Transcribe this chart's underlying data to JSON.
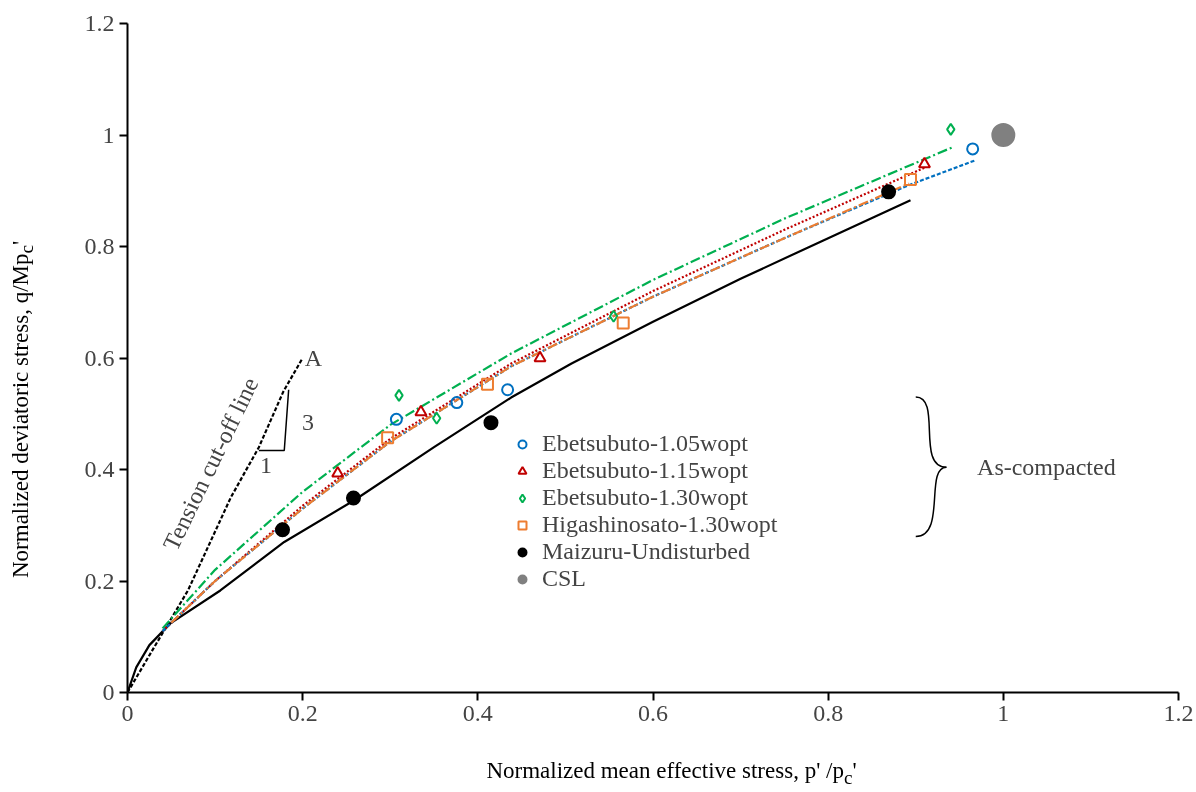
{
  "chart_data": {
    "type": "scatter",
    "xlabel": "Normalized mean effective stress, p' /p$_{c}$'",
    "ylabel": "Normalized deviatoric stress, q/Mp$_{c}$'",
    "xlim": [
      0,
      1.2
    ],
    "ylim": [
      0,
      1.2
    ],
    "xticks": [
      0,
      0.2,
      0.4,
      0.6,
      0.8,
      1,
      1.2
    ],
    "yticks": [
      0,
      0.2,
      0.4,
      0.6,
      0.8,
      1,
      1.2
    ],
    "grid": false,
    "legend": "bottom right",
    "series": [
      {
        "name": "Ebetsubuto-1.05wopt",
        "marker": "circle",
        "color": "#0070c0",
        "x": [
          0.307,
          0.376,
          0.434,
          0.965
        ],
        "values": [
          0.49,
          0.52,
          0.543,
          0.975
        ]
      },
      {
        "name": "Ebetsubuto-1.15wopt",
        "marker": "triangle",
        "color": "#c00000",
        "x": [
          0.24,
          0.335,
          0.471,
          0.91
        ],
        "values": [
          0.393,
          0.503,
          0.6,
          0.948
        ]
      },
      {
        "name": "Ebetsubuto-1.30wopt",
        "marker": "diamond",
        "color": "#00b050",
        "x": [
          0.31,
          0.353,
          0.555,
          0.94
        ],
        "values": [
          0.533,
          0.492,
          0.675,
          1.01
        ]
      },
      {
        "name": "Higashinosato-1.30wopt",
        "marker": "square",
        "color": "#ed7d31",
        "x": [
          0.297,
          0.411,
          0.566,
          0.894
        ],
        "values": [
          0.457,
          0.553,
          0.663,
          0.92
        ]
      },
      {
        "name": "Maizuru-Undisturbed",
        "marker": "circle",
        "color": "#000000",
        "x": [
          0.177,
          0.258,
          0.415,
          0.869
        ],
        "values": [
          0.292,
          0.349,
          0.484,
          0.898
        ]
      },
      {
        "name": "CSL",
        "marker": "circle",
        "color": "#808080",
        "x": [
          1
        ],
        "values": [
          1
        ]
      },
      {
        "type": "line",
        "line_style": "dashed",
        "color": "#0070c0",
        "x": [
          0.04,
          0.1,
          0.2,
          0.3,
          0.438,
          0.6,
          0.75,
          0.892,
          0.967
        ],
        "values": [
          0.11,
          0.2,
          0.33,
          0.45,
          0.585,
          0.71,
          0.815,
          0.91,
          0.954
        ]
      },
      {
        "type": "line",
        "line_style": "dotted",
        "color": "#c00000",
        "x": [
          0.04,
          0.1,
          0.2,
          0.3,
          0.438,
          0.6,
          0.75,
          0.911
        ],
        "values": [
          0.11,
          0.2,
          0.335,
          0.455,
          0.59,
          0.72,
          0.83,
          0.942
        ]
      },
      {
        "type": "line",
        "line_style": "dashdot",
        "color": "#00b050",
        "x": [
          0.04,
          0.1,
          0.2,
          0.3,
          0.438,
          0.6,
          0.75,
          0.942
        ],
        "values": [
          0.115,
          0.22,
          0.36,
          0.48,
          0.608,
          0.74,
          0.85,
          0.978
        ]
      },
      {
        "type": "line",
        "line_style": "dashdot",
        "color": "#ed7d31",
        "x": [
          0.05,
          0.1,
          0.2,
          0.3,
          0.438,
          0.6,
          0.75,
          0.892
        ],
        "values": [
          0.125,
          0.2,
          0.33,
          0.45,
          0.585,
          0.71,
          0.815,
          0.913
        ]
      },
      {
        "type": "line",
        "line_style": "solid",
        "color": "#000000",
        "x": [
          0,
          0.01,
          0.025,
          0.049,
          0.106,
          0.179,
          0.258,
          0.35,
          0.438,
          0.507,
          0.6,
          0.7,
          0.8,
          0.894
        ],
        "values": [
          0,
          0.045,
          0.085,
          0.124,
          0.183,
          0.27,
          0.344,
          0.44,
          0.529,
          0.59,
          0.665,
          0.742,
          0.815,
          0.883
        ]
      },
      {
        "type": "line",
        "line_style": "dashed",
        "color": "#000000",
        "x": [
          0,
          0.03,
          0.069,
          0.118,
          0.15,
          0.178,
          0.2
        ],
        "values": [
          0,
          0.08,
          0.183,
          0.35,
          0.44,
          0.54,
          0.6
        ]
      }
    ],
    "annotations": [
      {
        "text": "A",
        "x": 0.2,
        "y": 0.6
      },
      "Tension cut-off line",
      "3",
      "1",
      "As-compacted"
    ]
  }
}
